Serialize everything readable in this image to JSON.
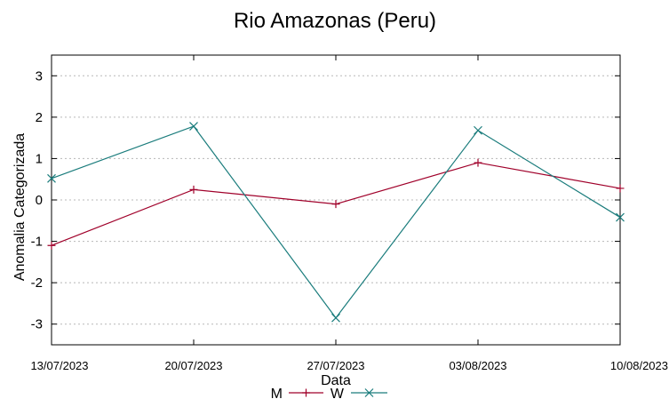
{
  "chart_data": {
    "type": "line",
    "title": "Rio Amazonas (Peru)",
    "xlabel": "Data",
    "ylabel": "Anomalia Categorizada",
    "categories": [
      "13/07/2023",
      "20/07/2023",
      "27/07/2023",
      "03/08/2023",
      "10/08/2023"
    ],
    "yticks": [
      "3",
      "2",
      "1",
      "0",
      "-1",
      "-2",
      "-3"
    ],
    "ylim": [
      -3.5,
      3.5
    ],
    "grid": true,
    "legend_position": "bottom",
    "series": [
      {
        "name": "M",
        "color": "#a0002a",
        "marker": "plus",
        "values": [
          -1.1,
          0.25,
          -0.1,
          0.9,
          0.28
        ]
      },
      {
        "name": "W",
        "color": "#1a7c7c",
        "marker": "cross",
        "values": [
          0.52,
          1.78,
          -2.85,
          1.68,
          -0.42
        ]
      }
    ]
  }
}
